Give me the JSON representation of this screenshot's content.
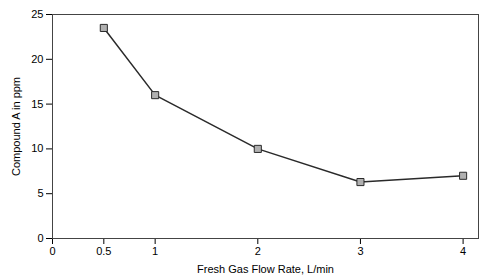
{
  "chart_data": {
    "type": "line",
    "x": [
      0.5,
      1.0,
      2.0,
      3.0,
      4.0
    ],
    "values": [
      23.5,
      16.0,
      10.0,
      6.3,
      7.0
    ],
    "xlabel": "Fresh Gas Flow Rate, L/min",
    "ylabel": "Compound A in ppm",
    "xlim": [
      0,
      4.15
    ],
    "ylim": [
      0,
      25
    ],
    "xticks": [
      0,
      0.5,
      1,
      2,
      3,
      4
    ],
    "yticks": [
      0,
      5,
      10,
      15,
      20,
      25
    ],
    "color": "#2a2a2a",
    "marker": "square",
    "grid": false
  }
}
